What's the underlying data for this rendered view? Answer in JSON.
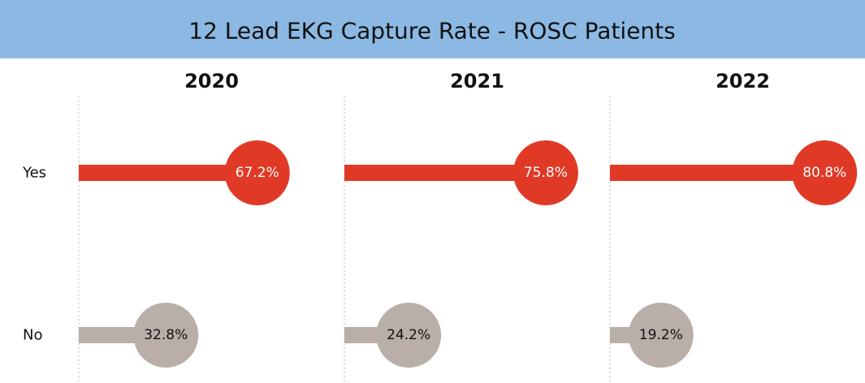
{
  "chart_data": {
    "type": "lollipop",
    "title": "12 Lead EKG Capture Rate - ROSC Patients",
    "categories": [
      "Yes",
      "No"
    ],
    "category_colors": [
      "#e03a26",
      "#b9aea8"
    ],
    "series": [
      {
        "name": "2020",
        "values": [
          67.2,
          32.8
        ],
        "value_labels": [
          "67.2%",
          "32.8%"
        ]
      },
      {
        "name": "2021",
        "values": [
          75.8,
          24.2
        ],
        "value_labels": [
          "75.8%",
          "24.2%"
        ]
      },
      {
        "name": "2022",
        "values": [
          80.8,
          19.2
        ],
        "value_labels": [
          "80.8%",
          "19.2%"
        ]
      }
    ],
    "xlim": [
      0,
      100
    ]
  }
}
